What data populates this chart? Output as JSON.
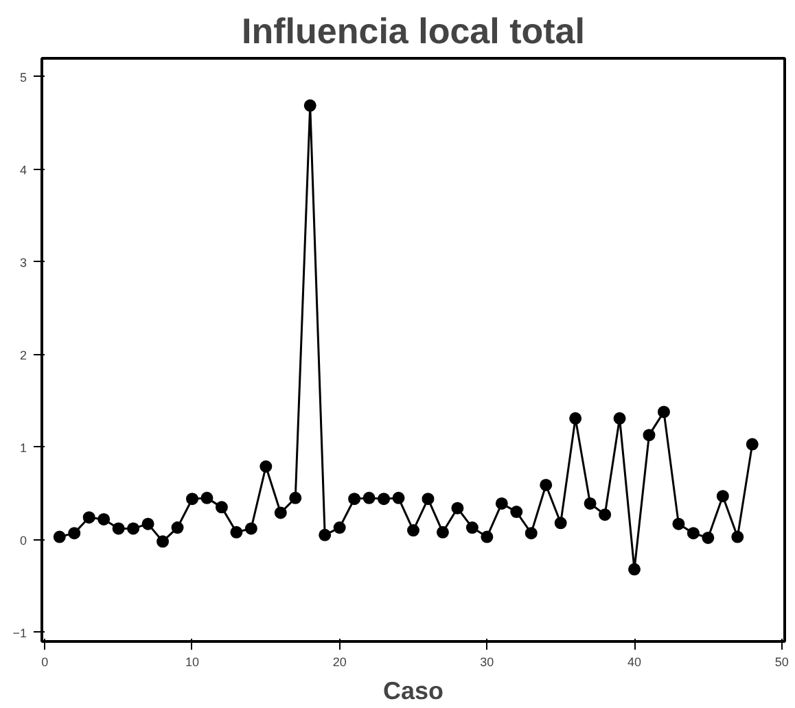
{
  "chart_data": {
    "type": "line",
    "title": "Influencia local total",
    "xlabel": "Caso",
    "x": [
      1,
      2,
      3,
      4,
      5,
      6,
      7,
      8,
      9,
      10,
      11,
      12,
      13,
      14,
      15,
      16,
      17,
      18,
      19,
      20,
      21,
      22,
      23,
      24,
      25,
      26,
      27,
      28,
      29,
      30,
      31,
      32,
      33,
      34,
      35,
      36,
      37,
      38,
      39,
      40,
      41,
      42,
      43,
      44,
      45,
      46,
      47,
      48
    ],
    "series": [
      {
        "color": "#000000",
        "values": [
          0.03,
          0.07,
          0.24,
          0.22,
          0.12,
          0.12,
          0.17,
          -0.02,
          0.13,
          0.44,
          0.45,
          0.35,
          0.08,
          0.12,
          0.79,
          0.29,
          0.45,
          4.69,
          0.05,
          0.13,
          0.44,
          0.45,
          0.44,
          0.45,
          0.1,
          0.44,
          0.08,
          0.34,
          0.13,
          0.03,
          0.39,
          0.3,
          0.07,
          0.59,
          0.18,
          1.31,
          0.39,
          0.27,
          1.31,
          -0.32,
          1.13,
          1.38,
          0.17,
          0.07,
          0.02,
          0.47,
          0.03,
          1.03
        ]
      }
    ],
    "xlim": [
      -0.2,
      50.2
    ],
    "ylim": [
      -1.1,
      5.2
    ],
    "xticks": [
      0,
      10,
      20,
      30,
      40,
      50
    ],
    "yticks": [
      -1,
      0,
      1,
      2,
      3,
      4,
      5
    ],
    "marker": "circle",
    "line_style": "solid"
  }
}
